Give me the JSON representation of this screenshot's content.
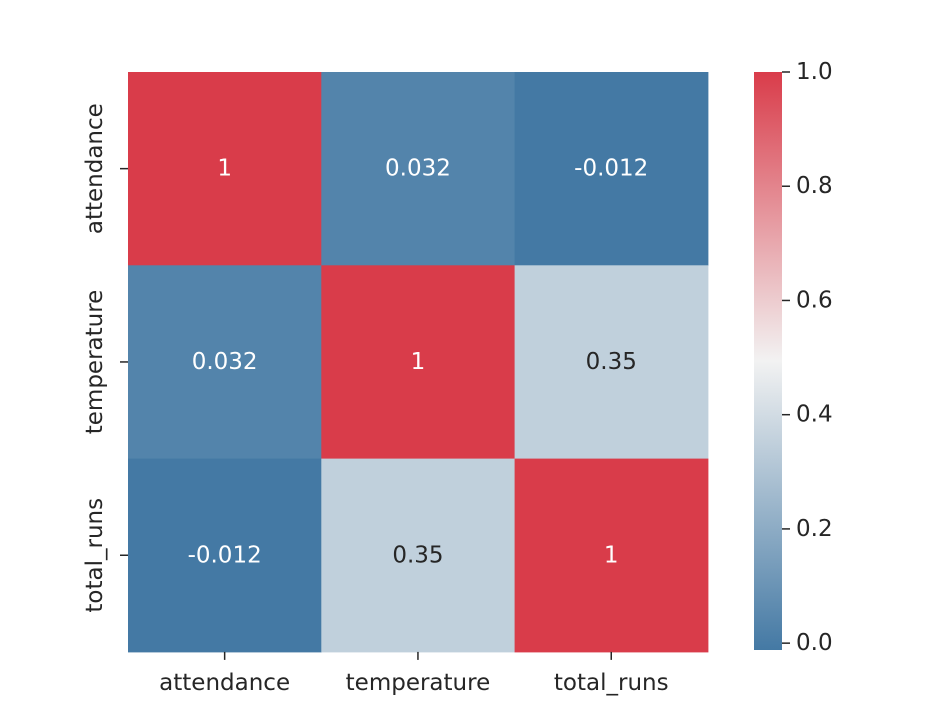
{
  "chart_data": {
    "type": "heatmap",
    "title": "",
    "xlabel": "",
    "ylabel": "",
    "x_categories": [
      "attendance",
      "temperature",
      "total_runs"
    ],
    "y_categories": [
      "attendance",
      "temperature",
      "total_runs"
    ],
    "values": [
      [
        1,
        0.032,
        -0.012
      ],
      [
        0.032,
        1,
        0.35
      ],
      [
        -0.012,
        0.35,
        1
      ]
    ],
    "annotations": [
      [
        "1",
        "0.032",
        "-0.012"
      ],
      [
        "0.032",
        "1",
        "0.35"
      ],
      [
        "-0.012",
        "0.35",
        "1"
      ]
    ],
    "colorbar": {
      "vmin": -0.012,
      "vmax": 1.0,
      "ticks": [
        "0.0",
        "0.2",
        "0.4",
        "0.6",
        "0.8",
        "1.0"
      ],
      "tick_values": [
        0.0,
        0.2,
        0.4,
        0.6,
        0.8,
        1.0
      ]
    },
    "colormap": {
      "low": "#4479a4",
      "mid": "#f2f2f2",
      "high": "#d93c4a"
    },
    "text_colors": {
      "light": "#ffffff",
      "dark": "#262626"
    }
  }
}
